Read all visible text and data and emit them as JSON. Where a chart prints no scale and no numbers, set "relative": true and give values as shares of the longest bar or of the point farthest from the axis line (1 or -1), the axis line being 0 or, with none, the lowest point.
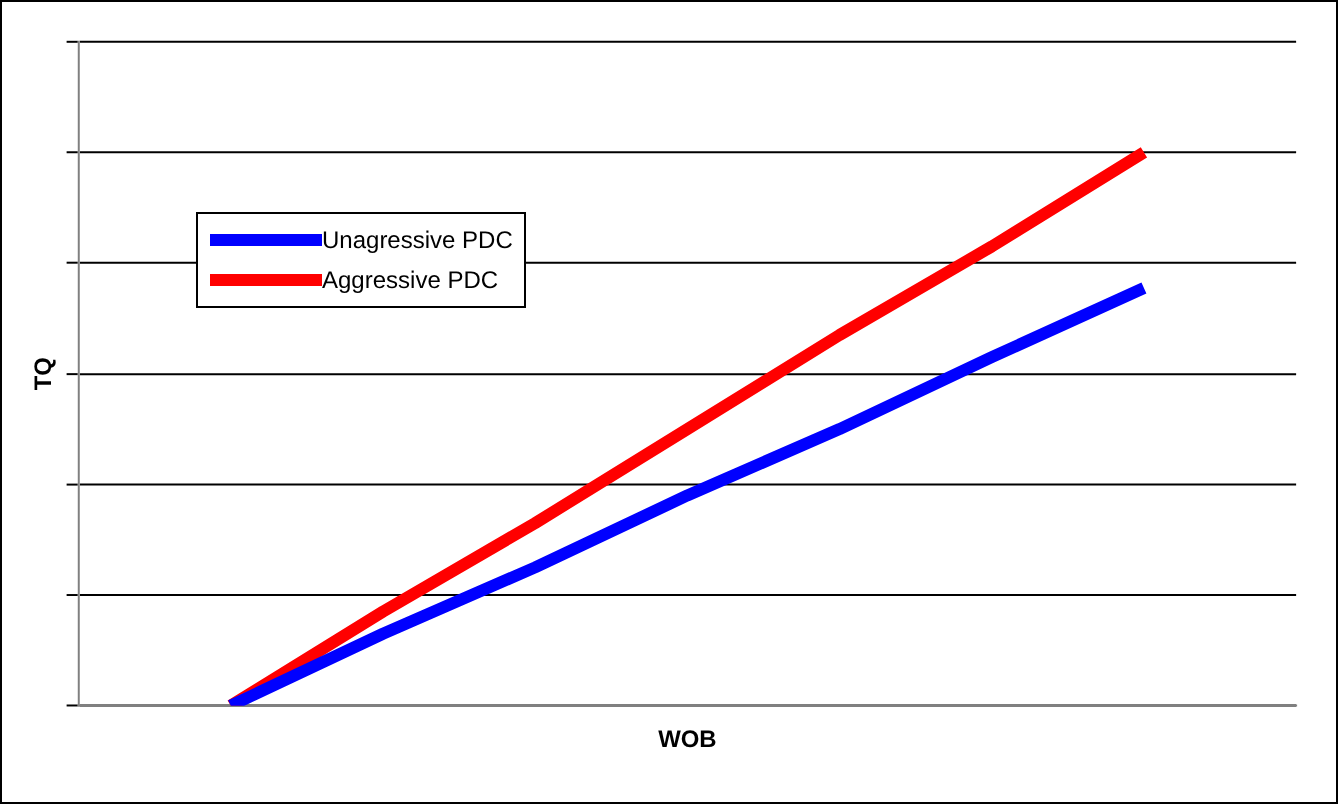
{
  "chart_data": {
    "type": "line",
    "relative": true,
    "xlabel": "WOB",
    "ylabel": "TQ",
    "categories": [
      null,
      null,
      null,
      null,
      null,
      null,
      null,
      null,
      null
    ],
    "series": [
      {
        "name": "Unagressive PDC",
        "color": "#0000ff",
        "values": [
          null,
          0,
          0.13,
          0.25,
          0.38,
          0.5,
          0.63,
          0.755,
          null
        ]
      },
      {
        "name": "Aggressive PDC",
        "color": "#ff0000",
        "values": [
          null,
          0,
          0.17,
          0.33,
          0.5,
          0.67,
          0.83,
          1,
          null
        ]
      }
    ],
    "grid": "y",
    "legend": "top left",
    "marker": "none",
    "line_style": "solid"
  }
}
